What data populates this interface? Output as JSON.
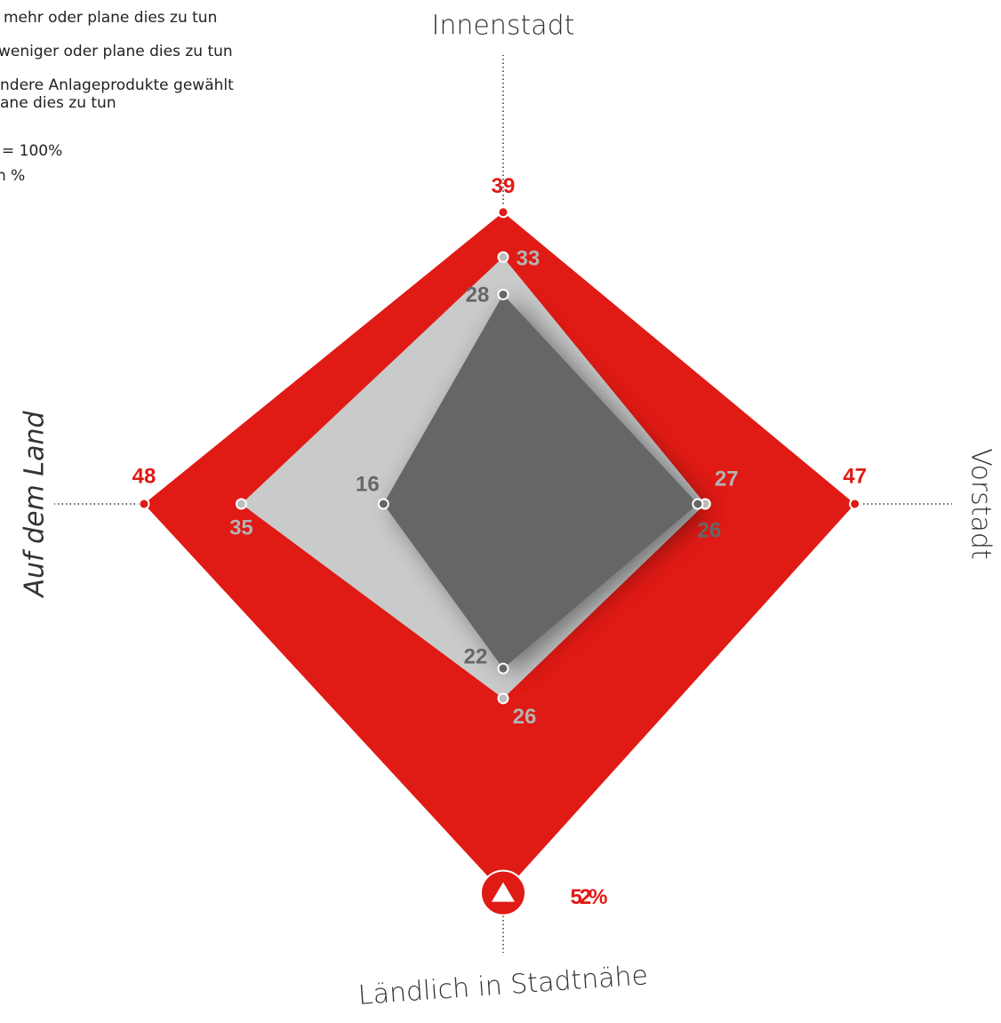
{
  "chart_data": {
    "type": "radar",
    "axes": [
      "Innenstadt",
      "Vorstadt",
      "Ländlich in Stadtnähe",
      "Auf dem Land"
    ],
    "series": [
      {
        "name": [
          "mehr oder plane dies zu tun"
        ],
        "color": "#e01a15",
        "values": [
          39,
          47,
          52,
          48
        ],
        "value_labels": [
          "39",
          "47",
          "52%",
          "48"
        ]
      },
      {
        "name": [
          "weniger oder plane dies zu tun"
        ],
        "color": "#c9caca",
        "values": [
          33,
          27,
          26,
          35
        ]
      },
      {
        "name": [
          "ndere Anlageprodukte gewählt",
          "ane dies zu tun"
        ],
        "color": "#666666",
        "values": [
          28,
          26,
          22,
          16
        ]
      }
    ],
    "notes": [
      "= 100%",
      "n %"
    ],
    "rlim": [
      0,
      60
    ]
  }
}
